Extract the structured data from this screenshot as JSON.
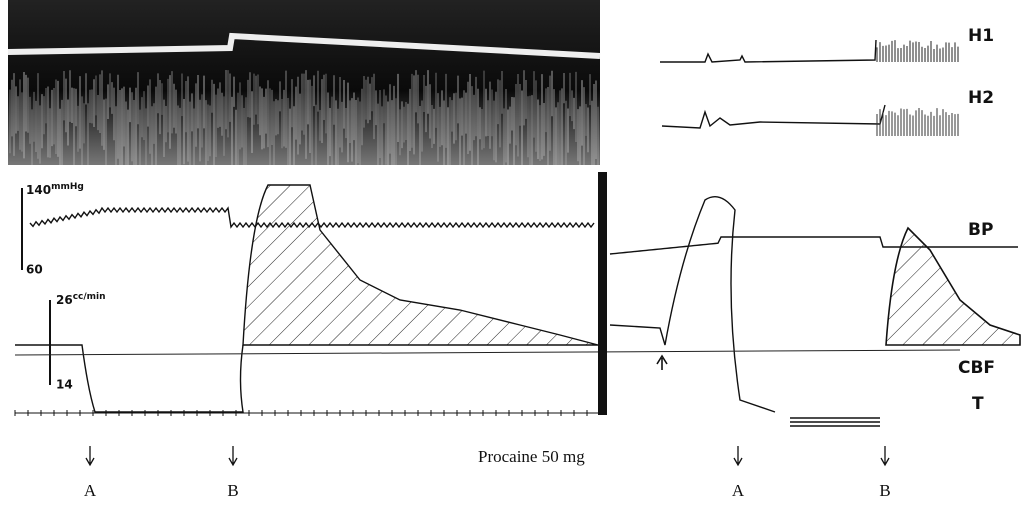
{
  "labels": {
    "h1": "H1",
    "h2": "H2",
    "bp": "BP",
    "cbf": "CBF",
    "t": "T"
  },
  "bp_scale": {
    "top": "140",
    "unit": "mmHg",
    "bottom": "60"
  },
  "flow_scale": {
    "top": "26",
    "unit": "cc/min",
    "bottom": "14"
  },
  "drug": "Procaine 50 mg",
  "markers": [
    "A",
    "B",
    "A",
    "B"
  ]
}
